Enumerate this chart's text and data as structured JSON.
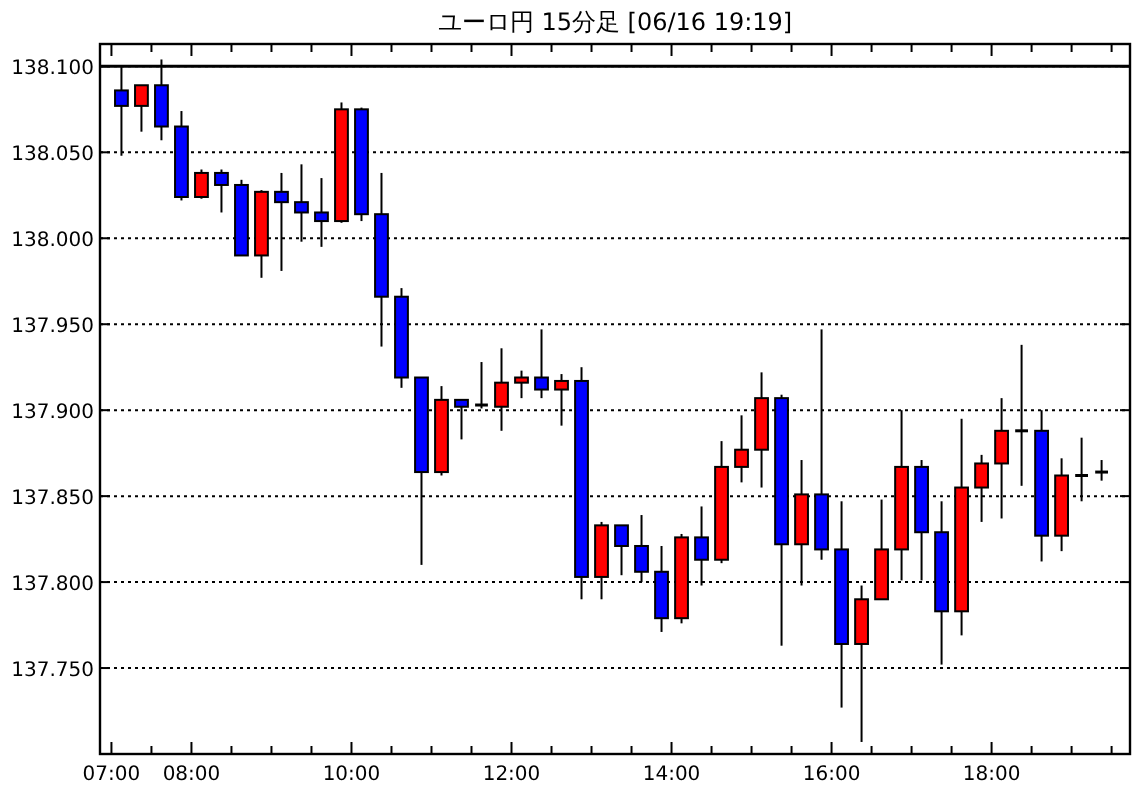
{
  "chart_data": {
    "type": "candlestick",
    "title": "ユーロ円 15分足 [06/16 19:19]",
    "x": [
      7.125,
      7.375,
      7.625,
      7.875,
      8.125,
      8.375,
      8.625,
      8.875,
      9.125,
      9.375,
      9.625,
      9.875,
      10.125,
      10.375,
      10.625,
      10.875,
      11.125,
      11.375,
      11.625,
      11.875,
      12.125,
      12.375,
      12.625,
      12.875,
      13.125,
      13.375,
      13.625,
      13.875,
      14.125,
      14.375,
      14.625,
      14.875,
      15.125,
      15.375,
      15.625,
      15.875,
      16.125,
      16.375,
      16.625,
      16.875,
      17.125,
      17.375,
      17.625,
      17.875,
      18.125,
      18.375,
      18.625,
      18.875,
      19.125,
      19.375
    ],
    "ohlc": [
      [
        138.086,
        138.1,
        138.048,
        138.077
      ],
      [
        138.077,
        138.089,
        138.062,
        138.089
      ],
      [
        138.089,
        138.104,
        138.057,
        138.065
      ],
      [
        138.065,
        138.074,
        138.022,
        138.024
      ],
      [
        138.024,
        138.04,
        138.023,
        138.038
      ],
      [
        138.038,
        138.04,
        138.015,
        138.031
      ],
      [
        138.031,
        138.034,
        137.99,
        137.99
      ],
      [
        137.99,
        138.028,
        137.977,
        138.027
      ],
      [
        138.027,
        138.038,
        137.981,
        138.021
      ],
      [
        138.021,
        138.043,
        137.998,
        138.015
      ],
      [
        138.015,
        138.035,
        137.995,
        138.01
      ],
      [
        138.01,
        138.079,
        138.009,
        138.075
      ],
      [
        138.075,
        138.076,
        138.01,
        138.014
      ],
      [
        138.014,
        138.038,
        137.937,
        137.966
      ],
      [
        137.966,
        137.971,
        137.913,
        137.919
      ],
      [
        137.919,
        137.919,
        137.81,
        137.864
      ],
      [
        137.864,
        137.914,
        137.862,
        137.906
      ],
      [
        137.906,
        137.906,
        137.883,
        137.902
      ],
      [
        137.903,
        137.928,
        137.901,
        137.903
      ],
      [
        137.902,
        137.936,
        137.888,
        137.916
      ],
      [
        137.916,
        137.923,
        137.907,
        137.919
      ],
      [
        137.919,
        137.947,
        137.907,
        137.912
      ],
      [
        137.912,
        137.921,
        137.891,
        137.917
      ],
      [
        137.917,
        137.925,
        137.79,
        137.803
      ],
      [
        137.803,
        137.835,
        137.79,
        137.833
      ],
      [
        137.833,
        137.833,
        137.804,
        137.821
      ],
      [
        137.821,
        137.839,
        137.8,
        137.806
      ],
      [
        137.806,
        137.821,
        137.771,
        137.779
      ],
      [
        137.779,
        137.828,
        137.776,
        137.826
      ],
      [
        137.826,
        137.844,
        137.798,
        137.813
      ],
      [
        137.813,
        137.882,
        137.811,
        137.867
      ],
      [
        137.867,
        137.897,
        137.858,
        137.877
      ],
      [
        137.877,
        137.922,
        137.855,
        137.907
      ],
      [
        137.907,
        137.909,
        137.763,
        137.822
      ],
      [
        137.822,
        137.871,
        137.798,
        137.851
      ],
      [
        137.851,
        137.947,
        137.813,
        137.819
      ],
      [
        137.819,
        137.847,
        137.727,
        137.764
      ],
      [
        137.764,
        137.798,
        137.707,
        137.79
      ],
      [
        137.79,
        137.848,
        137.79,
        137.819
      ],
      [
        137.819,
        137.9,
        137.801,
        137.867
      ],
      [
        137.867,
        137.871,
        137.801,
        137.829
      ],
      [
        137.829,
        137.847,
        137.752,
        137.783
      ],
      [
        137.783,
        137.895,
        137.769,
        137.855
      ],
      [
        137.855,
        137.874,
        137.835,
        137.869
      ],
      [
        137.869,
        137.907,
        137.837,
        137.888
      ],
      [
        137.888,
        137.938,
        137.856,
        137.888
      ],
      [
        137.888,
        137.9,
        137.812,
        137.827
      ],
      [
        137.827,
        137.872,
        137.818,
        137.862
      ],
      [
        137.862,
        137.884,
        137.847,
        137.862
      ],
      [
        137.864,
        137.871,
        137.859,
        137.864
      ]
    ],
    "colors": [
      "#0000ff",
      "#ff0000",
      "#0000ff",
      "#0000ff",
      "#ff0000",
      "#0000ff",
      "#0000ff",
      "#ff0000",
      "#0000ff",
      "#0000ff",
      "#0000ff",
      "#ff0000",
      "#0000ff",
      "#0000ff",
      "#0000ff",
      "#0000ff",
      "#ff0000",
      "#0000ff",
      "#000000",
      "#ff0000",
      "#ff0000",
      "#0000ff",
      "#ff0000",
      "#0000ff",
      "#ff0000",
      "#0000ff",
      "#0000ff",
      "#0000ff",
      "#ff0000",
      "#0000ff",
      "#ff0000",
      "#ff0000",
      "#ff0000",
      "#0000ff",
      "#ff0000",
      "#0000ff",
      "#0000ff",
      "#ff0000",
      "#ff0000",
      "#ff0000",
      "#0000ff",
      "#0000ff",
      "#ff0000",
      "#ff0000",
      "#ff0000",
      "#000000",
      "#0000ff",
      "#ff0000",
      "#000000",
      "#000000"
    ],
    "xlim": [
      6.857,
      19.73
    ],
    "xticks": [
      {
        "value": 7,
        "label": "07:00"
      },
      {
        "value": 7.5,
        "label": null
      },
      {
        "value": 8,
        "label": "08:00"
      },
      {
        "value": 8.5,
        "label": null
      },
      {
        "value": 9,
        "label": null
      },
      {
        "value": 9.5,
        "label": null
      },
      {
        "value": 10,
        "label": "10:00"
      },
      {
        "value": 10.5,
        "label": null
      },
      {
        "value": 11,
        "label": null
      },
      {
        "value": 11.5,
        "label": null
      },
      {
        "value": 12,
        "label": "12:00"
      },
      {
        "value": 12.5,
        "label": null
      },
      {
        "value": 13,
        "label": null
      },
      {
        "value": 13.5,
        "label": null
      },
      {
        "value": 14,
        "label": "14:00"
      },
      {
        "value": 14.5,
        "label": null
      },
      {
        "value": 15,
        "label": null
      },
      {
        "value": 15.5,
        "label": null
      },
      {
        "value": 16,
        "label": "16:00"
      },
      {
        "value": 16.5,
        "label": null
      },
      {
        "value": 17,
        "label": null
      },
      {
        "value": 17.5,
        "label": null
      },
      {
        "value": 18,
        "label": "18:00"
      },
      {
        "value": 18.5,
        "label": null
      },
      {
        "value": 19,
        "label": null
      },
      {
        "value": 19.5,
        "label": null
      }
    ],
    "ylim": [
      137.7,
      138.113
    ],
    "yticks": [
      {
        "value": 137.75,
        "label": "137.750"
      },
      {
        "value": 137.8,
        "label": "137.800"
      },
      {
        "value": 137.85,
        "label": "137.850"
      },
      {
        "value": 137.9,
        "label": "137.900"
      },
      {
        "value": 137.95,
        "label": "137.950"
      },
      {
        "value": 138.0,
        "label": "138.000"
      },
      {
        "value": 138.05,
        "label": "138.050"
      },
      {
        "value": 138.1,
        "label": "138.100"
      }
    ],
    "grid": "y",
    "line_style": "dotted",
    "ref_lines": [
      {
        "axis": "y",
        "value": 138.1,
        "color": "#000000",
        "line_style": "solid"
      }
    ]
  }
}
